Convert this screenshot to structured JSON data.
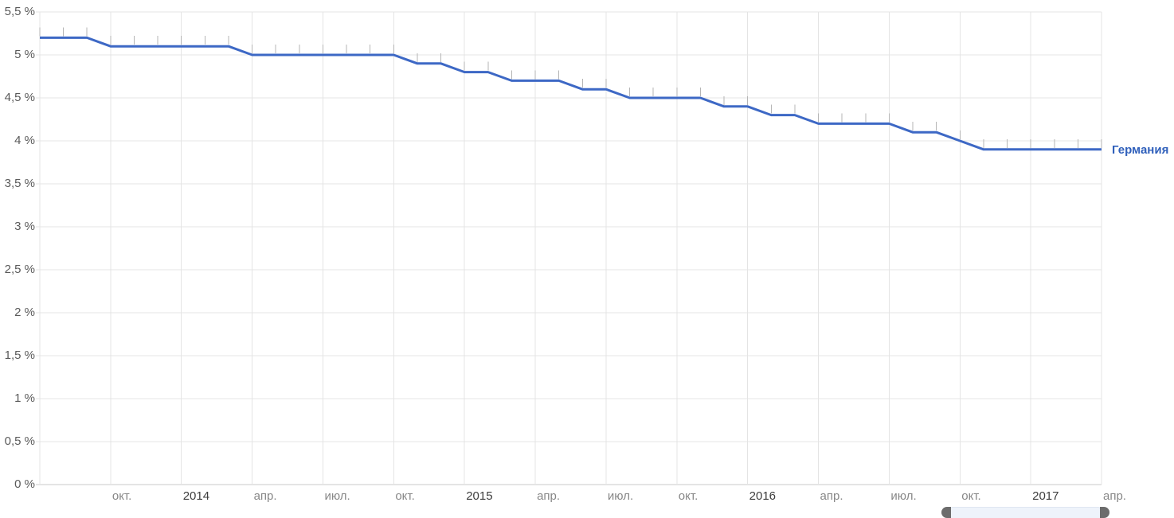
{
  "chart_data": {
    "type": "line",
    "title": "",
    "series": [
      {
        "name": "Германия",
        "color": "#3d68c5",
        "start_month": "2013-07",
        "end_month": "2017-04",
        "frequency": "monthly",
        "values": [
          5.2,
          5.2,
          5.2,
          5.1,
          5.1,
          5.1,
          5.1,
          5.1,
          5.1,
          5.0,
          5.0,
          5.0,
          5.0,
          5.0,
          5.0,
          5.0,
          4.9,
          4.9,
          4.8,
          4.8,
          4.7,
          4.7,
          4.7,
          4.6,
          4.6,
          4.5,
          4.5,
          4.5,
          4.5,
          4.4,
          4.4,
          4.3,
          4.3,
          4.2,
          4.2,
          4.2,
          4.2,
          4.1,
          4.1,
          4.0,
          3.9,
          3.9,
          3.9,
          3.9,
          3.9,
          3.9
        ]
      }
    ],
    "x_axis": {
      "tick_labels": [
        "окт.",
        "2014",
        "апр.",
        "июл.",
        "окт.",
        "2015",
        "апр.",
        "июл.",
        "окт.",
        "2016",
        "апр.",
        "июл.",
        "окт.",
        "2017",
        "апр."
      ],
      "tick_interval_months": 3,
      "first_tick_month_index": 3
    },
    "y_axis": {
      "min": 0,
      "max": 5.5,
      "step": 0.5,
      "unit": "%",
      "tick_labels": [
        "5,5 %",
        "5 %",
        "4,5 %",
        "4 %",
        "3,5 %",
        "3 %",
        "2,5 %",
        "2 %",
        "1,5 %",
        "1 %",
        "0,5 %",
        "0 %"
      ]
    },
    "grid": true,
    "legend_position": "right-of-line-end",
    "marker_style": "tick-above-point"
  },
  "colors": {
    "line": "#3d68c5",
    "series_label": "#3060bb",
    "gridline": "#e4e4e4",
    "baseline": "#c8c8c8",
    "point_tick": "#b5b5b5",
    "month_label": "#878787",
    "year_label": "#3d3d3d",
    "y_label": "#5a5a5a",
    "scrollbar_track": "#eef3fb",
    "scrollbar_cap": "#6c6c6c"
  }
}
